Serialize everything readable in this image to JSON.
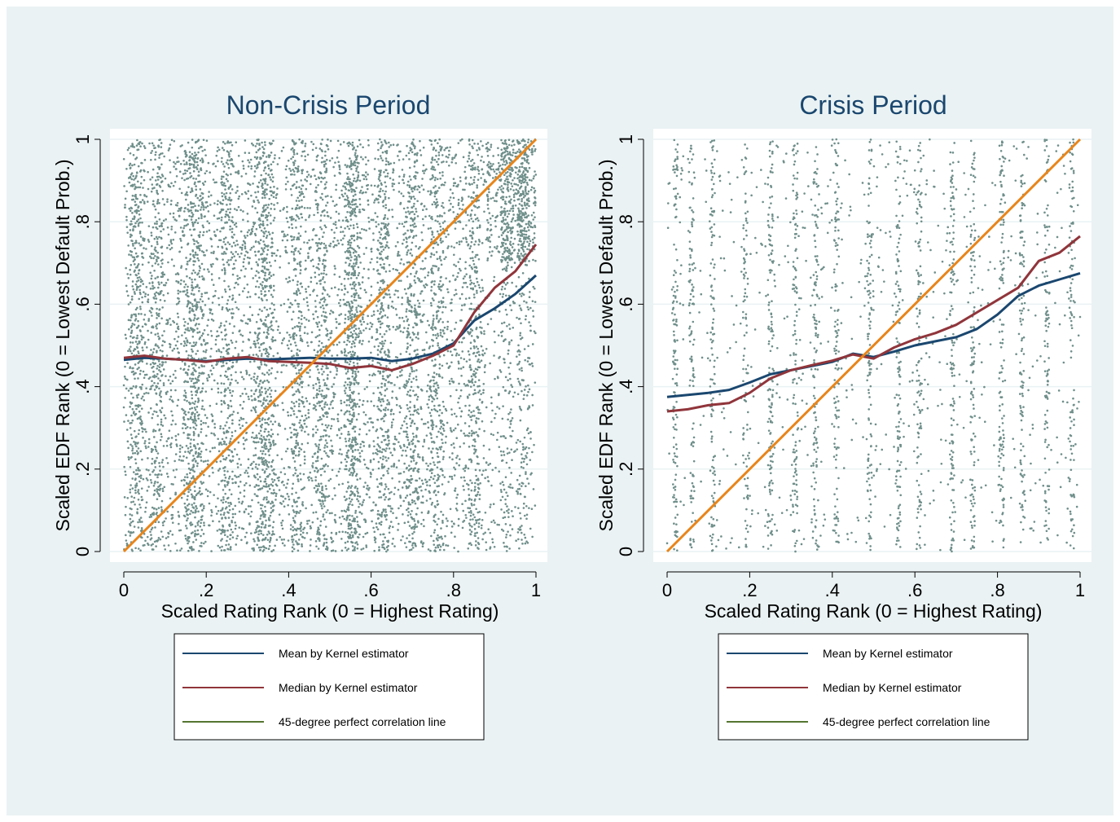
{
  "colors": {
    "background": "#eaf2f3",
    "plot_background": "#ffffff",
    "grid": "#eaf2f3",
    "scatter": "#6f8f8a",
    "mean_line": "#1a476f",
    "median_line": "#90353b",
    "diagonal_line": "#e8851b",
    "legend_diagonal": "#55752f",
    "title": "#1a476f"
  },
  "chart_data": [
    {
      "type": "scatter",
      "title": "Non-Crisis Period",
      "xlabel": "Scaled Rating Rank (0 = Highest Rating)",
      "ylabel": "Scaled EDF Rank (0 = Lowest Default Prob.)",
      "xlim": [
        0,
        1
      ],
      "ylim": [
        0,
        1
      ],
      "x_ticks": [
        "0",
        ".2",
        ".4",
        ".6",
        ".8",
        "1"
      ],
      "y_ticks": [
        "0",
        ".2",
        ".4",
        ".6",
        ".8",
        "1"
      ],
      "grid": true,
      "legend_position": "bottom",
      "scatter_note": "dense cloud of points covering the whole unit square",
      "series": [
        {
          "name": "Mean by Kernel estimator",
          "x": [
            0,
            0.05,
            0.1,
            0.15,
            0.2,
            0.25,
            0.3,
            0.35,
            0.4,
            0.45,
            0.5,
            0.55,
            0.6,
            0.65,
            0.7,
            0.75,
            0.8,
            0.85,
            0.9,
            0.95,
            1.0
          ],
          "y": [
            0.465,
            0.47,
            0.468,
            0.465,
            0.462,
            0.465,
            0.468,
            0.466,
            0.468,
            0.47,
            0.468,
            0.468,
            0.47,
            0.462,
            0.468,
            0.48,
            0.505,
            0.56,
            0.59,
            0.625,
            0.67
          ]
        },
        {
          "name": "Median by Kernel estimator",
          "x": [
            0,
            0.05,
            0.1,
            0.15,
            0.2,
            0.25,
            0.3,
            0.35,
            0.4,
            0.45,
            0.5,
            0.55,
            0.6,
            0.65,
            0.7,
            0.75,
            0.8,
            0.85,
            0.9,
            0.95,
            1.0
          ],
          "y": [
            0.47,
            0.475,
            0.468,
            0.465,
            0.46,
            0.468,
            0.472,
            0.462,
            0.46,
            0.458,
            0.455,
            0.445,
            0.45,
            0.44,
            0.455,
            0.475,
            0.5,
            0.58,
            0.64,
            0.68,
            0.745
          ]
        },
        {
          "name": "45-degree perfect correlation line",
          "x": [
            0,
            1
          ],
          "y": [
            0,
            1
          ]
        }
      ]
    },
    {
      "type": "scatter",
      "title": "Crisis Period",
      "xlabel": "Scaled Rating Rank (0 = Highest Rating)",
      "ylabel": "Scaled EDF Rank (0 = Lowest Default Prob.)",
      "xlim": [
        0,
        1
      ],
      "ylim": [
        0,
        1
      ],
      "x_ticks": [
        "0",
        ".2",
        ".4",
        ".6",
        ".8",
        "1"
      ],
      "y_ticks": [
        "0",
        ".2",
        ".4",
        ".6",
        ".8",
        "1"
      ],
      "grid": true,
      "legend_position": "bottom",
      "scatter_note": "sparser cloud of points arranged in vertical stripes",
      "series": [
        {
          "name": "Mean by Kernel estimator",
          "x": [
            0,
            0.05,
            0.1,
            0.15,
            0.2,
            0.25,
            0.3,
            0.35,
            0.4,
            0.45,
            0.5,
            0.55,
            0.6,
            0.65,
            0.7,
            0.75,
            0.8,
            0.85,
            0.9,
            0.95,
            1.0
          ],
          "y": [
            0.375,
            0.38,
            0.385,
            0.392,
            0.41,
            0.43,
            0.44,
            0.45,
            0.46,
            0.48,
            0.472,
            0.485,
            0.5,
            0.51,
            0.52,
            0.54,
            0.575,
            0.62,
            0.645,
            0.66,
            0.675
          ]
        },
        {
          "name": "Median by Kernel estimator",
          "x": [
            0,
            0.05,
            0.1,
            0.15,
            0.2,
            0.25,
            0.3,
            0.35,
            0.4,
            0.45,
            0.5,
            0.55,
            0.6,
            0.65,
            0.7,
            0.75,
            0.8,
            0.85,
            0.9,
            0.95,
            1.0
          ],
          "y": [
            0.34,
            0.345,
            0.355,
            0.36,
            0.385,
            0.42,
            0.44,
            0.452,
            0.463,
            0.478,
            0.468,
            0.495,
            0.515,
            0.53,
            0.55,
            0.58,
            0.61,
            0.64,
            0.705,
            0.725,
            0.765
          ]
        },
        {
          "name": "45-degree perfect correlation line",
          "x": [
            0,
            1
          ],
          "y": [
            0,
            1
          ]
        }
      ]
    }
  ]
}
